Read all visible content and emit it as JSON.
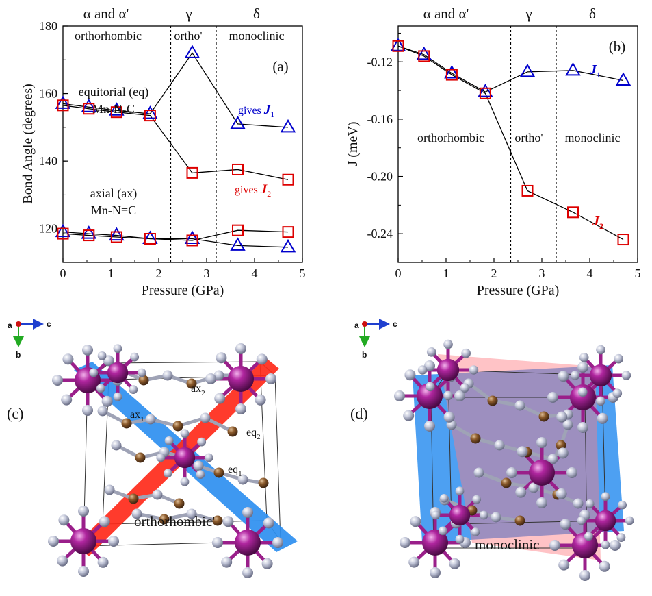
{
  "colors": {
    "blue": "#0000cc",
    "red": "#dd0000",
    "text": "#111111"
  },
  "chart_data": [
    {
      "type": "scatter",
      "panel_label": "(a)",
      "xlabel": "Pressure (GPa)",
      "ylabel": "Bond Angle (degrees)",
      "xlim": [
        0,
        5
      ],
      "ylim": [
        110,
        180
      ],
      "xticks": [
        "0",
        "1",
        "2",
        "3",
        "4",
        "5"
      ],
      "yticks": [
        "120",
        "140",
        "160",
        "180"
      ],
      "phase_boundaries": [
        2.25,
        3.2
      ],
      "phases": [
        "α and α'",
        "γ",
        "δ"
      ],
      "structures": [
        "orthorhombic",
        "ortho'",
        "monoclinic"
      ],
      "annotations": {
        "eq_line1": "equitorial (eq)",
        "eq_line2": "Mn-N-C",
        "ax_line1": "axial (ax)",
        "ax_line2": "Mn-N≡C",
        "gives": "gives",
        "j1": "J",
        "j1_sub": "1",
        "j2": "J",
        "j2_sub": "2"
      },
      "series": [
        {
          "marker": "triangle",
          "color": "#0000cc",
          "x": [
            0,
            0.54,
            1.12,
            1.82,
            2.7,
            3.65,
            4.7
          ],
          "y": [
            157,
            156,
            155,
            154,
            172,
            151,
            150
          ]
        },
        {
          "marker": "square",
          "color": "#dd0000",
          "x": [
            0,
            0.54,
            1.12,
            1.82,
            2.7,
            3.65,
            4.7
          ],
          "y": [
            156.5,
            155.5,
            154.5,
            153.5,
            136.5,
            137.5,
            134.5
          ]
        },
        {
          "marker": "triangle",
          "color": "#0000cc",
          "x": [
            0,
            0.54,
            1.12,
            1.82,
            2.7,
            3.65,
            4.7
          ],
          "y": [
            119,
            118.5,
            118,
            117,
            117,
            115,
            114.5
          ]
        },
        {
          "marker": "square",
          "color": "#dd0000",
          "x": [
            0,
            0.54,
            1.12,
            1.82,
            2.7,
            3.65,
            4.7
          ],
          "y": [
            118.5,
            118,
            117.5,
            117,
            116.5,
            119.5,
            119
          ]
        }
      ]
    },
    {
      "type": "scatter",
      "panel_label": "(b)",
      "xlabel": "Pressure (GPa)",
      "ylabel": "J (meV)",
      "xlim": [
        0,
        5
      ],
      "ylim": [
        -0.26,
        -0.095
      ],
      "xticks": [
        "0",
        "1",
        "2",
        "3",
        "4",
        "5"
      ],
      "yticks": [
        "-0.12",
        "-0.16",
        "-0.20",
        "-0.24"
      ],
      "phase_boundaries": [
        2.35,
        3.3
      ],
      "phases": [
        "α and α'",
        "γ",
        "δ"
      ],
      "structures": [
        "orthorhombic",
        "ortho'",
        "monoclinic"
      ],
      "annotations": {
        "j1": "J",
        "j1_sub": "1",
        "j2": "J",
        "j2_sub": "2"
      },
      "series": [
        {
          "name": "J1",
          "marker": "triangle",
          "color": "#0000cc",
          "x": [
            0,
            0.54,
            1.12,
            1.82,
            2.7,
            3.65,
            4.7
          ],
          "y": [
            -0.109,
            -0.115,
            -0.128,
            -0.141,
            -0.127,
            -0.126,
            -0.133
          ]
        },
        {
          "name": "J2",
          "marker": "square",
          "color": "#dd0000",
          "x": [
            0,
            0.54,
            1.12,
            1.82,
            2.7,
            3.65,
            4.7
          ],
          "y": [
            -0.109,
            -0.116,
            -0.129,
            -0.142,
            -0.21,
            -0.225,
            -0.244
          ]
        }
      ]
    }
  ],
  "panel_c": {
    "label": "(c)",
    "caption": "orthorhombic'",
    "axis_a": "a",
    "axis_b": "b",
    "axis_c": "c",
    "ax1": "ax",
    "ax1_sub": "1",
    "ax2": "ax",
    "ax2_sub": "2",
    "eq1": "eq",
    "eq1_sub": "1",
    "eq2": "eq",
    "eq2_sub": "2"
  },
  "panel_d": {
    "label": "(d)",
    "caption": "monoclinic",
    "axis_a": "a",
    "axis_b": "b",
    "axis_c": "c"
  }
}
